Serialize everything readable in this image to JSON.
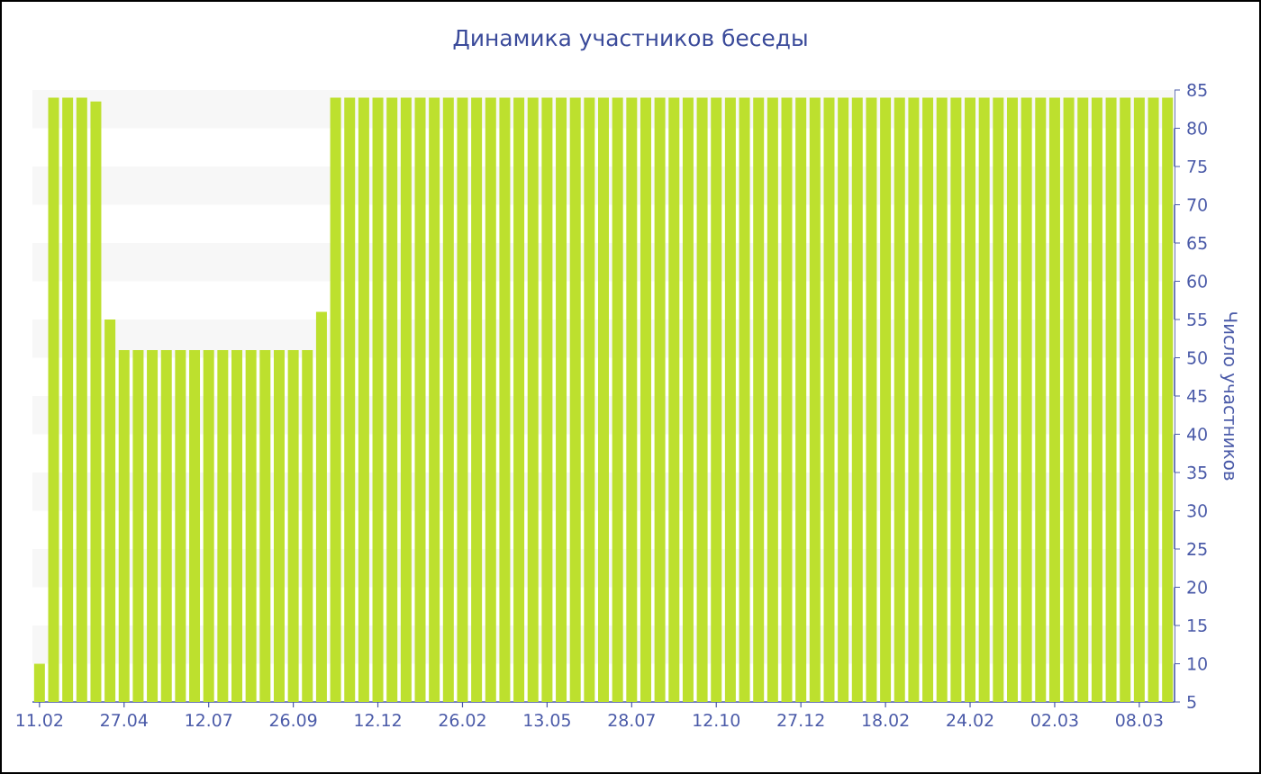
{
  "chart_data": {
    "type": "bar",
    "title": "Динамика участников беседы",
    "ylabel": "Число участников",
    "categories": [
      "11.02",
      null,
      null,
      null,
      null,
      null,
      "27.04",
      null,
      null,
      null,
      null,
      null,
      "12.07",
      null,
      null,
      null,
      null,
      null,
      "26.09",
      null,
      null,
      null,
      null,
      null,
      "12.12",
      null,
      null,
      null,
      null,
      null,
      "26.02",
      null,
      null,
      null,
      null,
      null,
      "13.05",
      null,
      null,
      null,
      null,
      null,
      "28.07",
      null,
      null,
      null,
      null,
      null,
      "12.10",
      null,
      null,
      null,
      null,
      null,
      "27.12",
      null,
      null,
      null,
      null,
      null,
      "18.02",
      null,
      null,
      null,
      null,
      null,
      "24.02",
      null,
      null,
      null,
      null,
      null,
      "02.03",
      null,
      null,
      null,
      null,
      null,
      "08.03",
      null,
      null
    ],
    "values": [
      10,
      84,
      84,
      84,
      83.5,
      55,
      51,
      51,
      51,
      51,
      51,
      51,
      51,
      51,
      51,
      51,
      51,
      51,
      51,
      51,
      56,
      84,
      84,
      84,
      84,
      84,
      84,
      84,
      84,
      84,
      84,
      84,
      84,
      84,
      84,
      84,
      84,
      84,
      84,
      84,
      84,
      84,
      84,
      84,
      84,
      84,
      84,
      84,
      84,
      84,
      84,
      84,
      84,
      84,
      84,
      84,
      84,
      84,
      84,
      84,
      84,
      84,
      84,
      84,
      84,
      84,
      84,
      84,
      84,
      84,
      84,
      84,
      84,
      84,
      84,
      84,
      84,
      84,
      84,
      84,
      84
    ],
    "color": "#bde02e",
    "ylim": [
      5,
      85
    ],
    "yticks": [
      5,
      10,
      15,
      20,
      25,
      30,
      35,
      40,
      45,
      50,
      55,
      60,
      65,
      70,
      75,
      80,
      85
    ],
    "bands": [
      {
        "axis": "y",
        "from": 80,
        "to": 85,
        "color": "#f7f7f7"
      },
      {
        "axis": "y",
        "from": 70,
        "to": 75,
        "color": "#f7f7f7"
      },
      {
        "axis": "y",
        "from": 60,
        "to": 65,
        "color": "#f7f7f7"
      },
      {
        "axis": "y",
        "from": 50,
        "to": 55,
        "color": "#f7f7f7"
      },
      {
        "axis": "y",
        "from": 40,
        "to": 45,
        "color": "#f7f7f7"
      },
      {
        "axis": "y",
        "from": 30,
        "to": 35,
        "color": "#f7f7f7"
      },
      {
        "axis": "y",
        "from": 20,
        "to": 25,
        "color": "#f7f7f7"
      },
      {
        "axis": "y",
        "from": 10,
        "to": 15,
        "color": "#f7f7f7"
      }
    ]
  }
}
